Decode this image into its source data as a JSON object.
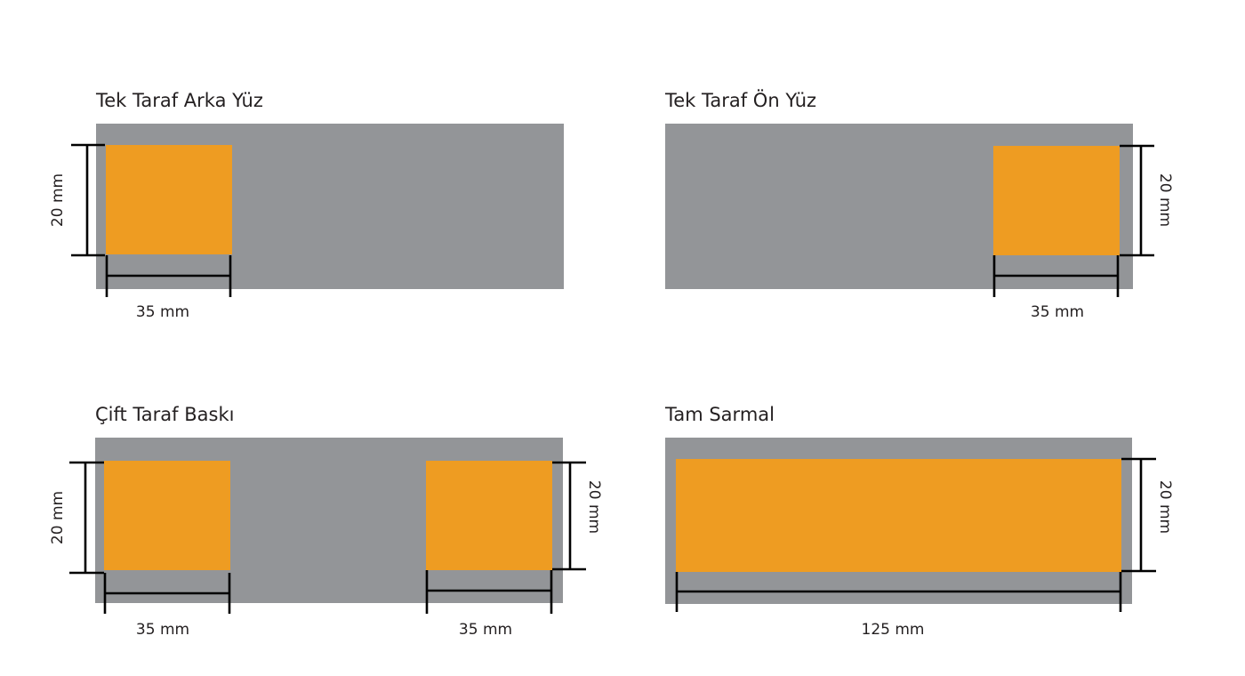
{
  "colors": {
    "background_strip": "#939598",
    "print_area": "#ee9c22",
    "dimension_line": "#000000"
  },
  "panels": [
    {
      "title": "Tek Taraf Arka Yüz",
      "height_label": "20 mm",
      "width_label": "35 mm"
    },
    {
      "title": "Tek Taraf Ön Yüz",
      "height_label": "20 mm",
      "width_label": "35 mm"
    },
    {
      "title": "Çift Taraf Baskı",
      "height_label_left": "20 mm",
      "height_label_right": "20 mm",
      "width_label_left": "35 mm",
      "width_label_right": "35 mm"
    },
    {
      "title": "Tam Sarmal",
      "height_label": "20 mm",
      "width_label": "125 mm"
    }
  ]
}
